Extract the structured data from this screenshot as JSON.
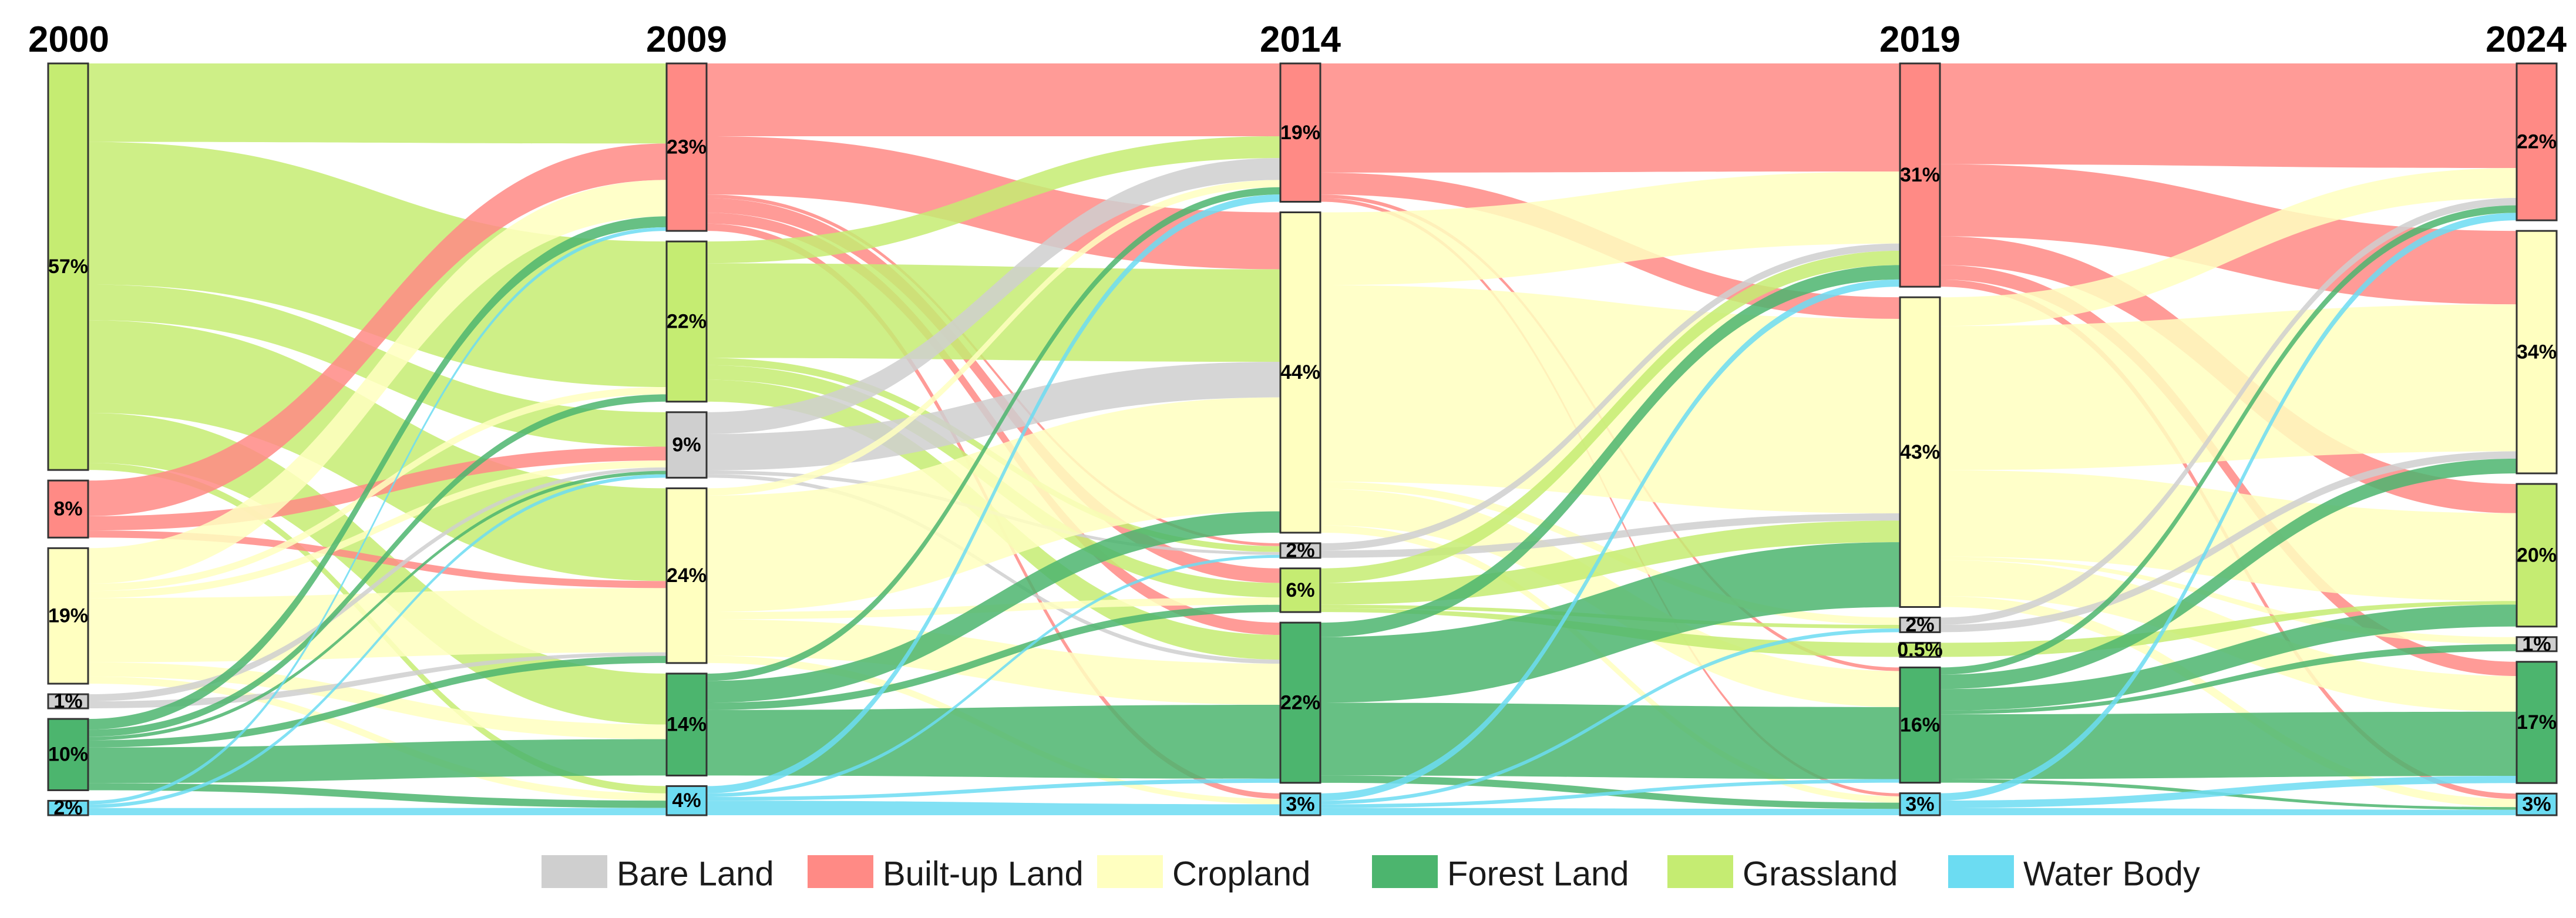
{
  "chart_data": {
    "type": "sankey",
    "title": "",
    "years": [
      "2000",
      "2009",
      "2014",
      "2019",
      "2024"
    ],
    "categories": [
      "Bare Land",
      "Built-up Land",
      "Cropland",
      "Forest Land",
      "Grassland",
      "Water Body"
    ],
    "colors": {
      "Bare Land": "#cfcfcf",
      "Built-up Land": "#ff8a85",
      "Cropland": "#ffffc0",
      "Forest Land": "#4cb56e",
      "Grassland": "#c5ec72",
      "Water Body": "#6cdcf2"
    },
    "node_order": [
      "Built-up Land",
      "Grassland",
      "Bare Land",
      "Cropland",
      "Forest Land",
      "Water Body"
    ],
    "node_order_2000": [
      "Grassland",
      "Built-up Land",
      "Cropland",
      "Bare Land",
      "Forest Land",
      "Water Body"
    ],
    "node_order_2014": [
      "Built-up Land",
      "Cropland",
      "Bare Land",
      "Grassland",
      "Forest Land",
      "Water Body"
    ],
    "node_order_2019": [
      "Built-up Land",
      "Cropland",
      "Bare Land",
      "Grassland",
      "Forest Land",
      "Water Body"
    ],
    "node_order_2024": [
      "Built-up Land",
      "Cropland",
      "Grassland",
      "Bare Land",
      "Forest Land",
      "Water Body"
    ],
    "shares": {
      "2000": {
        "Grassland": 57,
        "Built-up Land": 8,
        "Cropland": 19,
        "Bare Land": 1,
        "Forest Land": 10,
        "Water Body": 2
      },
      "2009": {
        "Built-up Land": 23,
        "Grassland": 22,
        "Bare Land": 9,
        "Cropland": 24,
        "Forest Land": 14,
        "Water Body": 4
      },
      "2014": {
        "Built-up Land": 19,
        "Cropland": 44,
        "Bare Land": 2,
        "Grassland": 6,
        "Forest Land": 22,
        "Water Body": 3
      },
      "2019": {
        "Built-up Land": 31,
        "Cropland": 43,
        "Bare Land": 2,
        "Grassland": 0.5,
        "Forest Land": 16,
        "Water Body": 3
      },
      "2024": {
        "Built-up Land": 22,
        "Cropland": 34,
        "Grassland": 20,
        "Bare Land": 1,
        "Forest Land": 17,
        "Water Body": 3
      }
    },
    "labels": {
      "2000": {
        "Grassland": "57%",
        "Built-up Land": "8%",
        "Cropland": "19%",
        "Bare Land": "1%",
        "Forest Land": "10%",
        "Water Body": "2%"
      },
      "2009": {
        "Built-up Land": "23%",
        "Grassland": "22%",
        "Bare Land": "9%",
        "Cropland": "24%",
        "Forest Land": "14%",
        "Water Body": "4%"
      },
      "2014": {
        "Built-up Land": "19%",
        "Cropland": "44%",
        "Bare Land": "2%",
        "Grassland": "6%",
        "Forest Land": "22%",
        "Water Body": "3%"
      },
      "2019": {
        "Built-up Land": "31%",
        "Cropland": "43%",
        "Bare Land": "2%",
        "Grassland": "0.5%",
        "Forest Land": "16%",
        "Water Body": "3%"
      },
      "2024": {
        "Built-up Land": "22%",
        "Cropland": "34%",
        "Grassland": "20%",
        "Bare Land": "1%",
        "Forest Land": "17%",
        "Water Body": "3%"
      }
    },
    "transitions": [
      {
        "from_year": "2000",
        "to_year": "2009",
        "flows": [
          {
            "source": "Grassland",
            "target": "Grassland",
            "value": 20
          },
          {
            "source": "Grassland",
            "target": "Built-up Land",
            "value": 11
          },
          {
            "source": "Grassland",
            "target": "Cropland",
            "value": 13
          },
          {
            "source": "Grassland",
            "target": "Forest Land",
            "value": 7
          },
          {
            "source": "Grassland",
            "target": "Bare Land",
            "value": 5
          },
          {
            "source": "Grassland",
            "target": "Water Body",
            "value": 1
          },
          {
            "source": "Built-up Land",
            "target": "Built-up Land",
            "value": 5
          },
          {
            "source": "Built-up Land",
            "target": "Bare Land",
            "value": 2
          },
          {
            "source": "Built-up Land",
            "target": "Cropland",
            "value": 1
          },
          {
            "source": "Cropland",
            "target": "Cropland",
            "value": 9
          },
          {
            "source": "Cropland",
            "target": "Built-up Land",
            "value": 5
          },
          {
            "source": "Cropland",
            "target": "Forest Land",
            "value": 2
          },
          {
            "source": "Cropland",
            "target": "Grassland",
            "value": 1
          },
          {
            "source": "Cropland",
            "target": "Bare Land",
            "value": 1
          },
          {
            "source": "Cropland",
            "target": "Water Body",
            "value": 1
          },
          {
            "source": "Bare Land",
            "target": "Bare Land",
            "value": 0.5
          },
          {
            "source": "Bare Land",
            "target": "Cropland",
            "value": 0.5
          },
          {
            "source": "Forest Land",
            "target": "Forest Land",
            "value": 5
          },
          {
            "source": "Forest Land",
            "target": "Cropland",
            "value": 1
          },
          {
            "source": "Forest Land",
            "target": "Grassland",
            "value": 1
          },
          {
            "source": "Forest Land",
            "target": "Built-up Land",
            "value": 1.5
          },
          {
            "source": "Forest Land",
            "target": "Bare Land",
            "value": 0.5
          },
          {
            "source": "Forest Land",
            "target": "Water Body",
            "value": 1
          },
          {
            "source": "Water Body",
            "target": "Water Body",
            "value": 1
          },
          {
            "source": "Water Body",
            "target": "Built-up Land",
            "value": 0.5
          },
          {
            "source": "Water Body",
            "target": "Bare Land",
            "value": 0.5
          }
        ]
      },
      {
        "from_year": "2009",
        "to_year": "2014",
        "flows": [
          {
            "source": "Built-up Land",
            "target": "Built-up Land",
            "value": 10
          },
          {
            "source": "Built-up Land",
            "target": "Cropland",
            "value": 8
          },
          {
            "source": "Built-up Land",
            "target": "Grassland",
            "value": 2
          },
          {
            "source": "Built-up Land",
            "target": "Forest Land",
            "value": 1.5
          },
          {
            "source": "Built-up Land",
            "target": "Bare Land",
            "value": 0.5
          },
          {
            "source": "Built-up Land",
            "target": "Water Body",
            "value": 1
          },
          {
            "source": "Grassland",
            "target": "Built-up Land",
            "value": 3
          },
          {
            "source": "Grassland",
            "target": "Cropland",
            "value": 13
          },
          {
            "source": "Grassland",
            "target": "Grassland",
            "value": 2
          },
          {
            "source": "Grassland",
            "target": "Forest Land",
            "value": 3
          },
          {
            "source": "Grassland",
            "target": "Bare Land",
            "value": 1
          },
          {
            "source": "Bare Land",
            "target": "Built-up Land",
            "value": 3
          },
          {
            "source": "Bare Land",
            "target": "Cropland",
            "value": 5
          },
          {
            "source": "Bare Land",
            "target": "Bare Land",
            "value": 0.5
          },
          {
            "source": "Bare Land",
            "target": "Forest Land",
            "value": 0.5
          },
          {
            "source": "Cropland",
            "target": "Built-up Land",
            "value": 1
          },
          {
            "source": "Cropland",
            "target": "Cropland",
            "value": 16
          },
          {
            "source": "Cropland",
            "target": "Grassland",
            "value": 1
          },
          {
            "source": "Cropland",
            "target": "Forest Land",
            "value": 5
          },
          {
            "source": "Cropland",
            "target": "Water Body",
            "value": 1
          },
          {
            "source": "Forest Land",
            "target": "Forest Land",
            "value": 9
          },
          {
            "source": "Forest Land",
            "target": "Cropland",
            "value": 3
          },
          {
            "source": "Forest Land",
            "target": "Built-up Land",
            "value": 1
          },
          {
            "source": "Forest Land",
            "target": "Grassland",
            "value": 1
          },
          {
            "source": "Water Body",
            "target": "Water Body",
            "value": 2
          },
          {
            "source": "Water Body",
            "target": "Built-up Land",
            "value": 1
          },
          {
            "source": "Water Body",
            "target": "Bare Land",
            "value": 0.5
          },
          {
            "source": "Water Body",
            "target": "Forest Land",
            "value": 0.5
          }
        ]
      },
      {
        "from_year": "2014",
        "to_year": "2019",
        "flows": [
          {
            "source": "Built-up Land",
            "target": "Built-up Land",
            "value": 15
          },
          {
            "source": "Built-up Land",
            "target": "Cropland",
            "value": 3
          },
          {
            "source": "Built-up Land",
            "target": "Forest Land",
            "value": 0.5
          },
          {
            "source": "Built-up Land",
            "target": "Water Body",
            "value": 0.5
          },
          {
            "source": "Cropland",
            "target": "Built-up Land",
            "value": 10
          },
          {
            "source": "Cropland",
            "target": "Cropland",
            "value": 27
          },
          {
            "source": "Cropland",
            "target": "Bare Land",
            "value": 1
          },
          {
            "source": "Cropland",
            "target": "Forest Land",
            "value": 5
          },
          {
            "source": "Cropland",
            "target": "Water Body",
            "value": 1
          },
          {
            "source": "Bare Land",
            "target": "Built-up Land",
            "value": 1
          },
          {
            "source": "Bare Land",
            "target": "Cropland",
            "value": 1
          },
          {
            "source": "Grassland",
            "target": "Built-up Land",
            "value": 2
          },
          {
            "source": "Grassland",
            "target": "Cropland",
            "value": 3
          },
          {
            "source": "Grassland",
            "target": "Grassland",
            "value": 0.5
          },
          {
            "source": "Grassland",
            "target": "Bare Land",
            "value": 0.5
          },
          {
            "source": "Forest Land",
            "target": "Built-up Land",
            "value": 2
          },
          {
            "source": "Forest Land",
            "target": "Cropland",
            "value": 9
          },
          {
            "source": "Forest Land",
            "target": "Forest Land",
            "value": 10
          },
          {
            "source": "Forest Land",
            "target": "Water Body",
            "value": 1
          },
          {
            "source": "Water Body",
            "target": "Built-up Land",
            "value": 1
          },
          {
            "source": "Water Body",
            "target": "Bare Land",
            "value": 0.5
          },
          {
            "source": "Water Body",
            "target": "Forest Land",
            "value": 0.5
          },
          {
            "source": "Water Body",
            "target": "Water Body",
            "value": 1
          }
        ]
      },
      {
        "from_year": "2019",
        "to_year": "2024",
        "flows": [
          {
            "source": "Built-up Land",
            "target": "Built-up Land",
            "value": 14
          },
          {
            "source": "Built-up Land",
            "target": "Cropland",
            "value": 10
          },
          {
            "source": "Built-up Land",
            "target": "Grassland",
            "value": 4
          },
          {
            "source": "Built-up Land",
            "target": "Forest Land",
            "value": 2
          },
          {
            "source": "Built-up Land",
            "target": "Water Body",
            "value": 1
          },
          {
            "source": "Cropland",
            "target": "Built-up Land",
            "value": 4
          },
          {
            "source": "Cropland",
            "target": "Cropland",
            "value": 20
          },
          {
            "source": "Cropland",
            "target": "Grassland",
            "value": 12
          },
          {
            "source": "Cropland",
            "target": "Forest Land",
            "value": 5
          },
          {
            "source": "Cropland",
            "target": "Bare Land",
            "value": 0.5
          },
          {
            "source": "Cropland",
            "target": "Water Body",
            "value": 1.5
          },
          {
            "source": "Bare Land",
            "target": "Built-up Land",
            "value": 1
          },
          {
            "source": "Bare Land",
            "target": "Cropland",
            "value": 1
          },
          {
            "source": "Grassland",
            "target": "Grassland",
            "value": 0.5
          },
          {
            "source": "Forest Land",
            "target": "Forest Land",
            "value": 9
          },
          {
            "source": "Forest Land",
            "target": "Cropland",
            "value": 2
          },
          {
            "source": "Forest Land",
            "target": "Grassland",
            "value": 3
          },
          {
            "source": "Forest Land",
            "target": "Built-up Land",
            "value": 1
          },
          {
            "source": "Forest Land",
            "target": "Bare Land",
            "value": 0.5
          },
          {
            "source": "Forest Land",
            "target": "Water Body",
            "value": 0.5
          },
          {
            "source": "Water Body",
            "target": "Water Body",
            "value": 1
          },
          {
            "source": "Water Body",
            "target": "Built-up Land",
            "value": 1
          },
          {
            "source": "Water Body",
            "target": "Forest Land",
            "value": 1
          }
        ]
      }
    ],
    "legend_placement": "bottom-center"
  }
}
